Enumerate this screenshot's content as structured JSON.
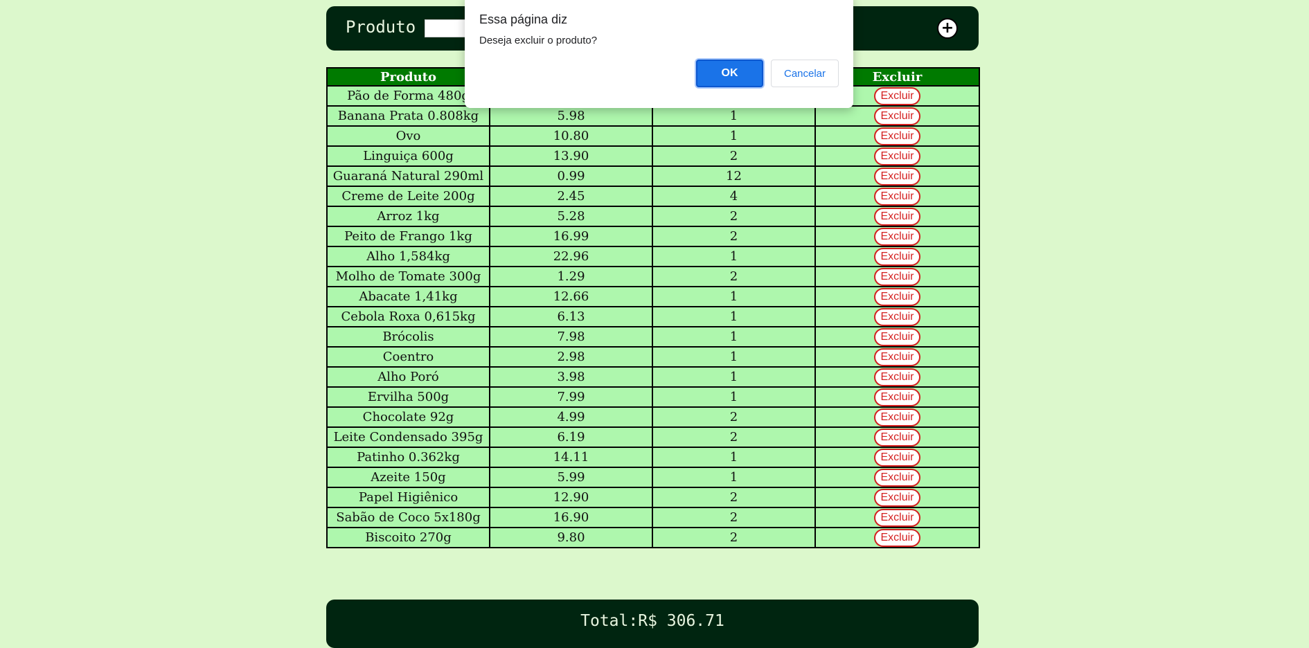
{
  "form": {
    "product_label": "Produto",
    "product_value": "",
    "add_label": "+"
  },
  "table": {
    "headers": [
      "Produto",
      "",
      "",
      "Excluir"
    ],
    "delete_label": "Excluir",
    "rows": [
      {
        "name": "Pão de Forma 480g",
        "price": "",
        "qty": ""
      },
      {
        "name": "Banana Prata 0.808kg",
        "price": "5.98",
        "qty": "1"
      },
      {
        "name": "Ovo",
        "price": "10.80",
        "qty": "1"
      },
      {
        "name": "Linguiça 600g",
        "price": "13.90",
        "qty": "2"
      },
      {
        "name": "Guaraná Natural 290ml",
        "price": "0.99",
        "qty": "12"
      },
      {
        "name": "Creme de Leite 200g",
        "price": "2.45",
        "qty": "4"
      },
      {
        "name": "Arroz 1kg",
        "price": "5.28",
        "qty": "2"
      },
      {
        "name": "Peito de Frango 1kg",
        "price": "16.99",
        "qty": "2"
      },
      {
        "name": "Alho 1,584kg",
        "price": "22.96",
        "qty": "1"
      },
      {
        "name": "Molho de Tomate 300g",
        "price": "1.29",
        "qty": "2"
      },
      {
        "name": "Abacate 1,41kg",
        "price": "12.66",
        "qty": "1"
      },
      {
        "name": "Cebola Roxa 0,615kg",
        "price": "6.13",
        "qty": "1"
      },
      {
        "name": "Brócolis",
        "price": "7.98",
        "qty": "1"
      },
      {
        "name": "Coentro",
        "price": "2.98",
        "qty": "1"
      },
      {
        "name": "Alho Poró",
        "price": "3.98",
        "qty": "1"
      },
      {
        "name": "Ervilha 500g",
        "price": "7.99",
        "qty": "1"
      },
      {
        "name": "Chocolate 92g",
        "price": "4.99",
        "qty": "2"
      },
      {
        "name": "Leite Condensado 395g",
        "price": "6.19",
        "qty": "2"
      },
      {
        "name": "Patinho 0.362kg",
        "price": "14.11",
        "qty": "1"
      },
      {
        "name": "Azeite 150g",
        "price": "5.99",
        "qty": "1"
      },
      {
        "name": "Papel Higiênico",
        "price": "12.90",
        "qty": "2"
      },
      {
        "name": "Sabão de Coco 5x180g",
        "price": "16.90",
        "qty": "2"
      },
      {
        "name": "Biscoito 270g",
        "price": "9.80",
        "qty": "2"
      }
    ]
  },
  "footer": {
    "total_text": "Total:R$ 306.71"
  },
  "dialog": {
    "title": "Essa página diz",
    "message": "Deseja excluir o produto?",
    "ok_label": "OK",
    "cancel_label": "Cancelar"
  }
}
